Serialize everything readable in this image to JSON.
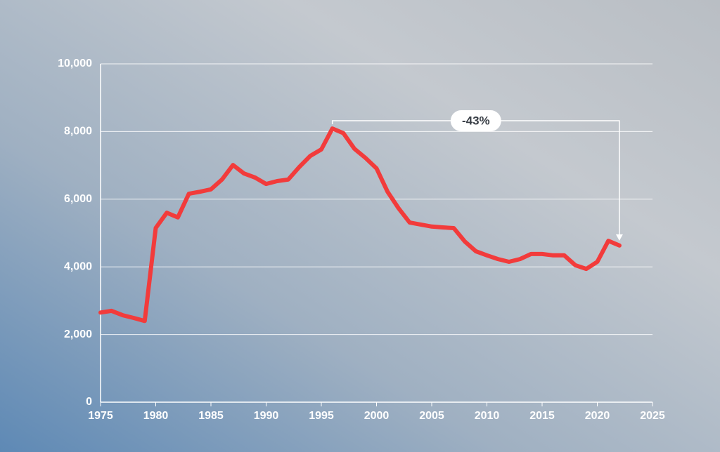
{
  "chart_data": {
    "type": "line",
    "x": [
      1975,
      1976,
      1977,
      1978,
      1979,
      1980,
      1981,
      1982,
      1983,
      1984,
      1985,
      1986,
      1987,
      1988,
      1989,
      1990,
      1991,
      1992,
      1993,
      1994,
      1995,
      1996,
      1997,
      1998,
      1999,
      2000,
      2001,
      2002,
      2003,
      2004,
      2005,
      2006,
      2007,
      2008,
      2009,
      2010,
      2011,
      2012,
      2013,
      2014,
      2015,
      2016,
      2017,
      2018,
      2019,
      2020,
      2021,
      2022
    ],
    "values": [
      2650,
      2700,
      2570,
      2490,
      2400,
      5150,
      5600,
      5460,
      6160,
      6220,
      6290,
      6580,
      7010,
      6760,
      6640,
      6450,
      6535,
      6580,
      6950,
      7280,
      7470,
      8090,
      7950,
      7490,
      7220,
      6910,
      6220,
      5730,
      5310,
      5250,
      5190,
      5165,
      5145,
      4750,
      4460,
      4340,
      4230,
      4150,
      4230,
      4380,
      4380,
      4340,
      4340,
      4050,
      3940,
      4150,
      4770,
      4630
    ],
    "color": "#f23b3b",
    "annotation": "-43%",
    "xlim": [
      1975,
      2025
    ],
    "xticks": [
      1975,
      1980,
      1985,
      1990,
      1995,
      2000,
      2005,
      2010,
      2015,
      2020,
      2025
    ],
    "ylim": [
      0,
      10000
    ],
    "yticks": [
      0,
      {
        "value": 2000,
        "label": "2,000"
      },
      {
        "value": 4000,
        "label": "4,000"
      },
      {
        "value": 6000,
        "label": "6,000"
      },
      {
        "value": 8000,
        "label": "8,000"
      },
      {
        "value": 10000,
        "label": "10,000"
      }
    ],
    "grid": true
  }
}
